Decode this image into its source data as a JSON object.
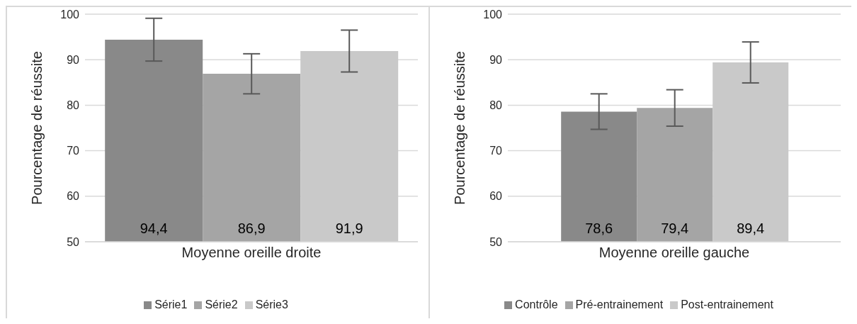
{
  "chart_data": [
    {
      "type": "bar",
      "categories": [
        "Moyenne oreille droite"
      ],
      "ylabel": "Pourcentage de réussite",
      "ylim": [
        50,
        100
      ],
      "yticks": [
        50,
        60,
        70,
        80,
        90,
        100
      ],
      "grid": "y",
      "legend": "bottom",
      "series": [
        {
          "name": "Série1",
          "color": "#898989",
          "values": [
            94.4
          ],
          "errors": [
            4.7
          ],
          "value_labels": [
            "94,4"
          ]
        },
        {
          "name": "Série2",
          "color": "#a5a5a5",
          "values": [
            86.9
          ],
          "errors": [
            4.4
          ],
          "value_labels": [
            "86,9"
          ]
        },
        {
          "name": "Série3",
          "color": "#c9c9c9",
          "values": [
            91.9
          ],
          "errors": [
            4.6
          ],
          "value_labels": [
            "91,9"
          ]
        }
      ]
    },
    {
      "type": "bar",
      "categories": [
        "Moyenne oreille gauche"
      ],
      "ylabel": "Pourcentage de réussite",
      "ylim": [
        50,
        100
      ],
      "yticks": [
        50,
        60,
        70,
        80,
        90,
        100
      ],
      "grid": "y",
      "legend": "bottom",
      "series": [
        {
          "name": "Contrôle",
          "color": "#898989",
          "values": [
            78.6
          ],
          "errors": [
            3.9
          ],
          "value_labels": [
            "78,6"
          ]
        },
        {
          "name": "Pré-entrainement",
          "color": "#a5a5a5",
          "values": [
            79.4
          ],
          "errors": [
            4.0
          ],
          "value_labels": [
            "79,4"
          ]
        },
        {
          "name": "Post-entrainement",
          "color": "#c9c9c9",
          "values": [
            89.4
          ],
          "errors": [
            4.5
          ],
          "value_labels": [
            "89,4"
          ]
        }
      ]
    }
  ]
}
